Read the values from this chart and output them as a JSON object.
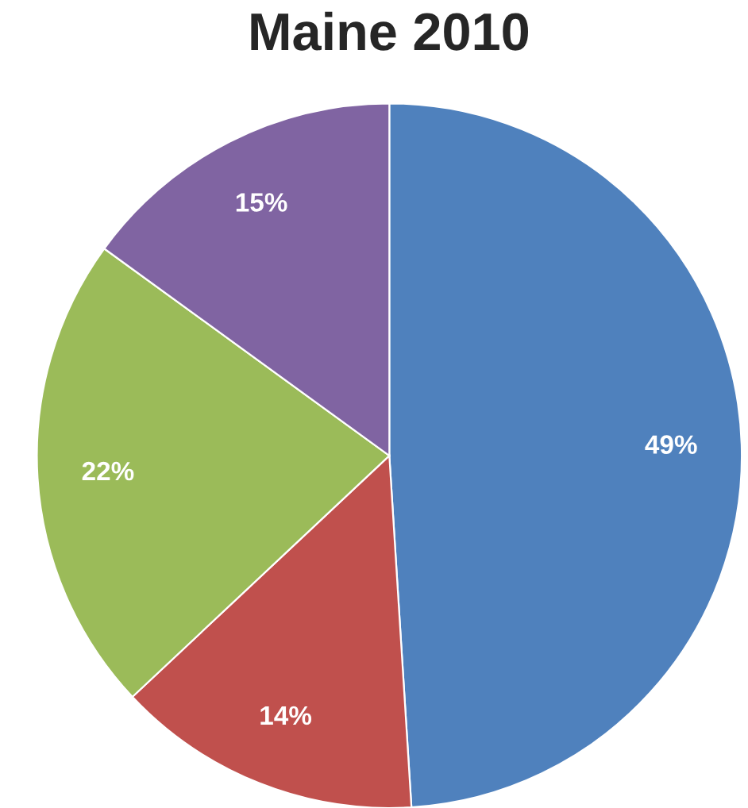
{
  "chart_data": {
    "type": "pie",
    "title": "Maine 2010",
    "categories": [
      null,
      null,
      null,
      null
    ],
    "values": [
      49,
      14,
      22,
      15
    ],
    "colors": [
      "#4f81bd",
      "#c0504d",
      "#9bbb59",
      "#8064a2"
    ],
    "value_labels": [
      "49%",
      "14%",
      "22%",
      "15%"
    ]
  }
}
